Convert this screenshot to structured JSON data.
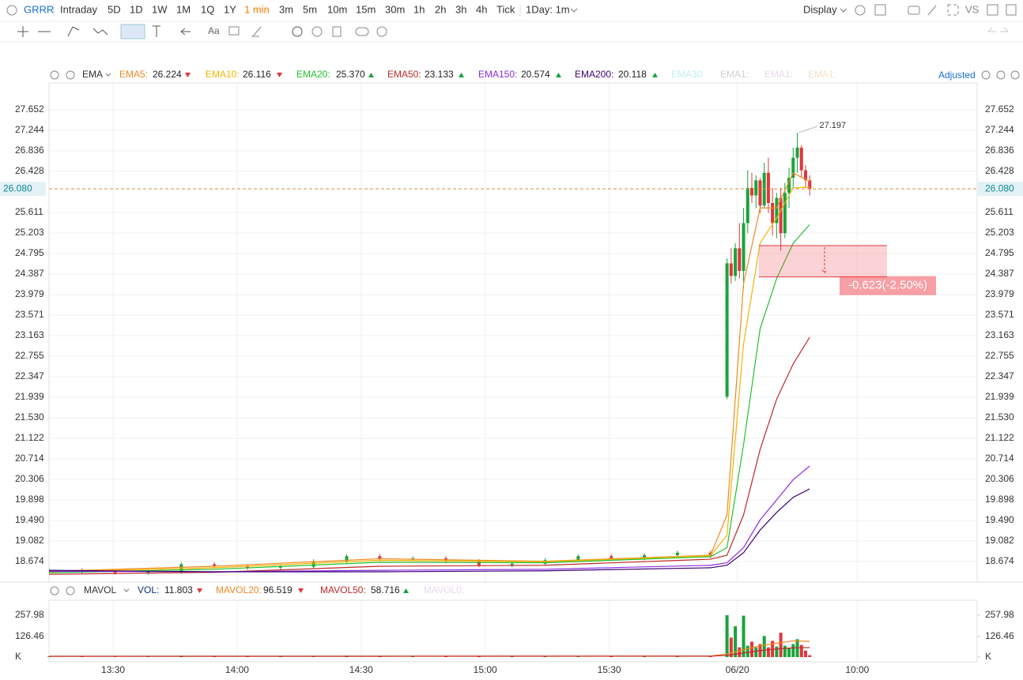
{
  "toolbar": {
    "symbol": "GRRR",
    "periods": [
      "Intraday",
      "5D",
      "1D",
      "1W",
      "1M",
      "1Q",
      "1Y",
      "1 min",
      "3m",
      "5m",
      "10m",
      "15m",
      "30m",
      "1h",
      "2h",
      "3h",
      "4h",
      "Tick"
    ],
    "active": 7,
    "interval": "1Day: 1m",
    "display": "Display",
    "compare": "VS",
    "text_tool": "Aa"
  },
  "chart_data": [
    {
      "type": "candlestick",
      "indicator": "EMA",
      "adjust": "Adjusted",
      "x": [
        0,
        8,
        16,
        24,
        32,
        40,
        48,
        56,
        64,
        72,
        80,
        88,
        96,
        104,
        112,
        120,
        128,
        136,
        144,
        152,
        160,
        164,
        165,
        166,
        167,
        168,
        169,
        170,
        171,
        172,
        173,
        174,
        175,
        176,
        177,
        178,
        179,
        180,
        181,
        182,
        183,
        184
      ],
      "open": [
        18.48,
        18.5,
        18.48,
        18.45,
        18.47,
        18.62,
        18.58,
        18.55,
        18.57,
        18.68,
        18.78,
        18.72,
        18.74,
        18.68,
        18.6,
        18.63,
        18.7,
        18.78,
        18.74,
        18.8,
        18.85,
        21.95,
        24.6,
        24.35,
        24.9,
        24.45,
        25.4,
        26.1,
        25.95,
        26.25,
        25.75,
        26.4,
        25.8,
        25.4,
        25.9,
        25.2,
        26.0,
        26.3,
        26.7,
        26.9,
        26.45,
        26.25
      ],
      "high": [
        18.54,
        18.54,
        18.52,
        18.51,
        18.66,
        18.66,
        18.62,
        18.61,
        18.72,
        18.82,
        18.82,
        18.78,
        18.78,
        18.72,
        18.67,
        18.74,
        18.82,
        18.82,
        18.84,
        18.89,
        18.89,
        24.7,
        24.9,
        25.0,
        25.4,
        25.7,
        26.45,
        26.4,
        26.35,
        26.3,
        26.6,
        26.7,
        26.1,
        26.0,
        26.1,
        26.2,
        26.5,
        26.9,
        27.197,
        26.95,
        26.55,
        26.35
      ],
      "low": [
        18.44,
        18.44,
        18.41,
        18.41,
        18.43,
        18.54,
        18.51,
        18.51,
        18.53,
        18.64,
        18.68,
        18.68,
        18.64,
        18.56,
        18.56,
        18.59,
        18.66,
        18.7,
        18.7,
        18.76,
        18.74,
        21.9,
        24.2,
        24.25,
        24.3,
        24.1,
        25.2,
        25.8,
        25.7,
        25.6,
        25.7,
        25.6,
        25.15,
        25.1,
        24.85,
        25.1,
        25.7,
        26.1,
        26.4,
        26.3,
        26.1,
        25.95
      ],
      "close": [
        18.5,
        18.48,
        18.45,
        18.47,
        18.62,
        18.58,
        18.55,
        18.57,
        18.68,
        18.78,
        18.72,
        18.74,
        18.68,
        18.6,
        18.63,
        18.7,
        18.78,
        18.74,
        18.8,
        18.85,
        18.78,
        24.6,
        24.35,
        24.9,
        24.45,
        25.4,
        26.1,
        25.95,
        26.25,
        25.75,
        26.4,
        25.8,
        25.4,
        25.9,
        25.2,
        26.0,
        26.3,
        26.7,
        26.9,
        26.45,
        26.25,
        26.08
      ],
      "up_color": "#1aa33b",
      "down_color": "#e0363a",
      "series": [
        {
          "name": "EMA5:",
          "color": "#f08a24",
          "trend": "down",
          "x": [
            0,
            40,
            80,
            120,
            160,
            164,
            168,
            172,
            176,
            180,
            184
          ],
          "values": [
            18.48,
            18.58,
            18.73,
            18.68,
            18.8,
            19.6,
            24.2,
            25.7,
            25.7,
            26.4,
            26.224
          ]
        },
        {
          "name": "EMA10:",
          "color": "#f2b500",
          "trend": "down",
          "x": [
            0,
            40,
            80,
            120,
            160,
            164,
            168,
            172,
            176,
            180,
            184
          ],
          "values": [
            18.47,
            18.55,
            18.7,
            18.67,
            18.79,
            19.2,
            23.0,
            25.0,
            25.5,
            26.1,
            26.116
          ]
        },
        {
          "name": "EMA20:",
          "color": "#22c02e",
          "trend": "up",
          "x": [
            0,
            40,
            80,
            120,
            160,
            164,
            168,
            172,
            176,
            180,
            184
          ],
          "values": [
            18.45,
            18.52,
            18.66,
            18.65,
            18.77,
            18.95,
            21.0,
            23.3,
            24.3,
            25.0,
            25.37
          ],
          "value_labels": [
            null,
            null,
            null,
            null,
            null,
            null,
            null,
            null,
            null,
            null,
            "25.370"
          ]
        },
        {
          "name": "EMA50:",
          "color": "#c0282a",
          "trend": "up",
          "x": [
            0,
            40,
            80,
            120,
            160,
            164,
            168,
            172,
            176,
            180,
            184
          ],
          "values": [
            18.42,
            18.46,
            18.58,
            18.6,
            18.72,
            18.8,
            19.6,
            20.9,
            21.9,
            22.6,
            23.133
          ]
        },
        {
          "name": "EMA150:",
          "color": "#8a2be2",
          "trend": "up",
          "x": [
            0,
            40,
            80,
            120,
            160,
            164,
            168,
            172,
            176,
            180,
            184
          ],
          "values": [
            18.48,
            18.47,
            18.5,
            18.52,
            18.6,
            18.65,
            18.95,
            19.5,
            19.9,
            20.3,
            20.574
          ]
        },
        {
          "name": "EMA200:",
          "color": "#3a0070",
          "trend": "up",
          "x": [
            0,
            40,
            80,
            120,
            160,
            164,
            168,
            172,
            176,
            180,
            184
          ],
          "values": [
            18.5,
            18.47,
            18.47,
            18.49,
            18.55,
            18.6,
            18.85,
            19.3,
            19.65,
            19.95,
            20.118
          ]
        }
      ],
      "inactive": [
        {
          "name": "EMA30",
          "color": "#bfeef5"
        },
        {
          "name": "EMA1:",
          "color": "#d0d0d0"
        },
        {
          "name": "EMA1:",
          "color": "#e8d8f0"
        },
        {
          "name": "EMA1:",
          "color": "#f8e0c8"
        }
      ],
      "ylim": [
        18.266,
        28.186
      ],
      "yticks": [
        27.652,
        27.244,
        26.836,
        26.428,
        25.611,
        25.203,
        24.795,
        24.387,
        23.979,
        23.571,
        23.163,
        22.755,
        22.347,
        21.939,
        {
          "value": 21.53,
          "label": "21.530"
        },
        21.122,
        20.714,
        20.306,
        19.898,
        {
          "value": 19.49,
          "label": "19.490"
        },
        19.082,
        18.674
      ],
      "grid": true,
      "last_price": {
        "value": 26.08,
        "label": "26.080"
      },
      "high_label": {
        "x": 181,
        "value": 27.197
      },
      "measure": {
        "label": "-0.623(-2.50%)",
        "from": 24.953,
        "to": 24.33,
        "x": [
          171.7,
          202.7
        ]
      }
    },
    {
      "type": "bar",
      "indicator": "MAVOL",
      "name": "VOL:",
      "color": "#1a2a80",
      "trend": "down",
      "x": [
        0,
        8,
        16,
        24,
        32,
        40,
        48,
        56,
        64,
        72,
        80,
        88,
        96,
        104,
        112,
        120,
        128,
        136,
        144,
        152,
        160,
        164,
        165,
        166,
        167,
        168,
        169,
        170,
        171,
        172,
        173,
        174,
        175,
        176,
        177,
        178,
        179,
        180,
        181,
        182,
        183,
        184
      ],
      "values": [
        4,
        3,
        2,
        5,
        9,
        6,
        3,
        4,
        7,
        10,
        5,
        4,
        6,
        8,
        3,
        4,
        6,
        5,
        7,
        9,
        5,
        258,
        120,
        190,
        60,
        255,
        70,
        95,
        60,
        80,
        130,
        60,
        100,
        65,
        150,
        70,
        55,
        80,
        110,
        75,
        40,
        11.803
      ],
      "series": [
        {
          "name": "MAVOL20:",
          "color": "#f08a24",
          "trend": "down",
          "x": [
            0,
            80,
            160,
            164,
            168,
            172,
            176,
            180,
            184
          ],
          "values": [
            5,
            6,
            6,
            19,
            45,
            70,
            85,
            100,
            96.519
          ]
        },
        {
          "name": "MAVOL50:",
          "color": "#c0282a",
          "trend": "up",
          "x": [
            0,
            80,
            160,
            164,
            168,
            172,
            176,
            180,
            184
          ],
          "values": [
            5,
            5,
            6,
            11,
            25,
            40,
            50,
            57,
            58.716
          ]
        }
      ],
      "inactive": [
        {
          "name": "MAVOL0:",
          "color": "#e8d8f0"
        }
      ],
      "xlim": [
        0,
        224.5
      ],
      "xticks": [
        {
          "value": 15.5,
          "label": "13:30"
        },
        {
          "value": 45.5,
          "label": "14:00"
        },
        {
          "value": 75.5,
          "label": "14:30"
        },
        {
          "value": 105.5,
          "label": "15:00"
        },
        {
          "value": 135.5,
          "label": "15:30"
        },
        {
          "value": 166.5,
          "label": "06/20"
        },
        {
          "value": 195.5,
          "label": "10:00"
        }
      ],
      "ylim": [
        0,
        350
      ],
      "yticks": [
        257.98,
        126.46,
        {
          "value": 0,
          "label": "K"
        }
      ]
    }
  ]
}
